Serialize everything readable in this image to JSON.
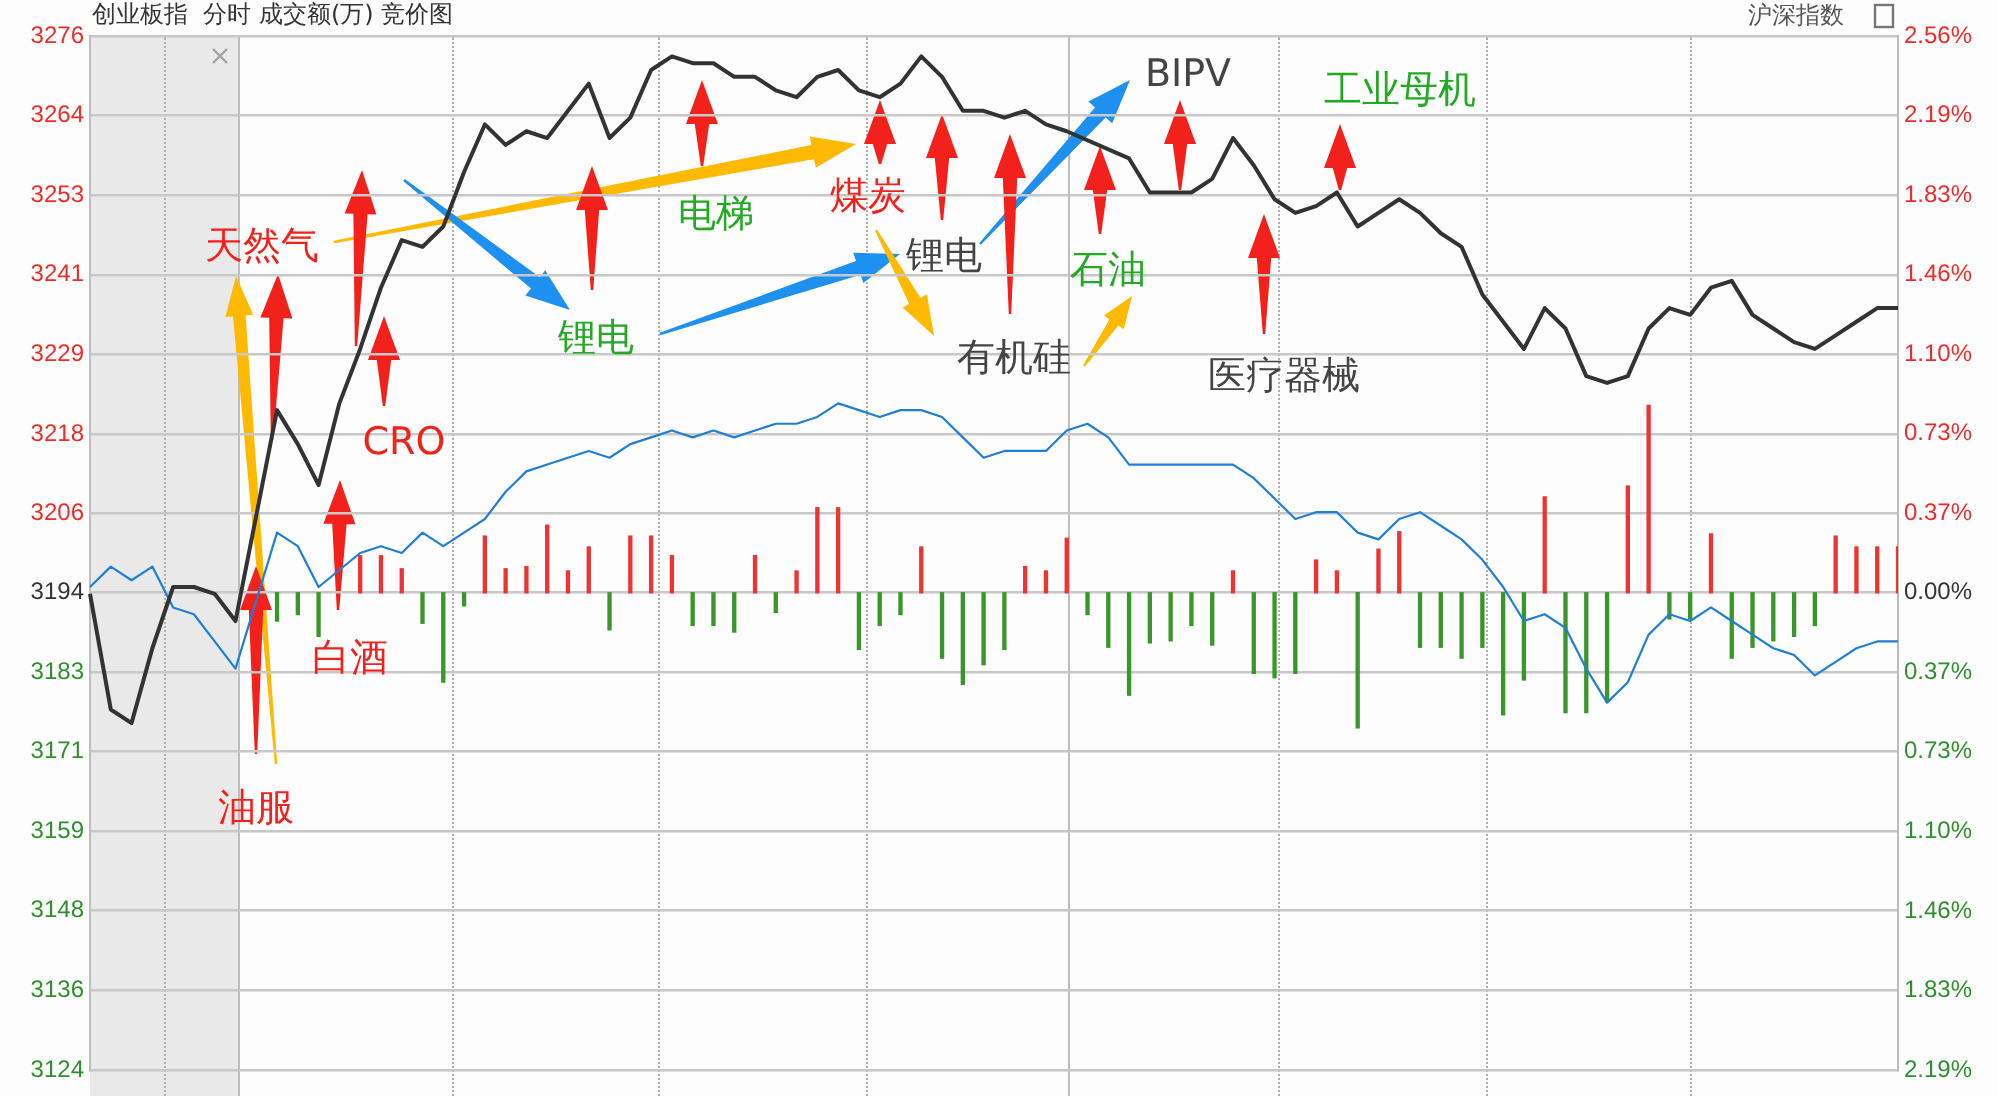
{
  "chart_data": {
    "type": "line",
    "title": "创业板指  分时 成交额(万) 竞价图",
    "categories": [
      null,
      null,
      null,
      null,
      null,
      null,
      null,
      null,
      null,
      null,
      null,
      null,
      null,
      null,
      null,
      null,
      null,
      null,
      null,
      null,
      null,
      null,
      null,
      null,
      null,
      null,
      null,
      null,
      null,
      null,
      null,
      null,
      null,
      null,
      null,
      null,
      null,
      null,
      null,
      null,
      null,
      null,
      null,
      null,
      null,
      null,
      null,
      null,
      null,
      null,
      null,
      null,
      null,
      null,
      null,
      null,
      null,
      null,
      null,
      null,
      null,
      null,
      null,
      null,
      null,
      null,
      null,
      null,
      null,
      null,
      null,
      null,
      null,
      null,
      null,
      null,
      null,
      null,
      null,
      null,
      null,
      null,
      null,
      null,
      null,
      null,
      null,
      null
    ],
    "series": [
      {
        "color": "#333333",
        "values": [
          3194,
          3177,
          3175,
          3186,
          3195,
          3195,
          3194,
          3190,
          null,
          3221,
          3216,
          3210,
          3222,
          3230,
          3239,
          3246,
          3245,
          3248,
          3256,
          3263,
          3260,
          3262,
          3261,
          3265,
          3269,
          3261,
          3264,
          3271,
          3273,
          3272,
          3272,
          3270,
          3270,
          3268,
          3267,
          3270,
          3271,
          3268,
          3267,
          3269,
          3273,
          3270,
          3265,
          3265,
          3264,
          3265,
          3263,
          3262,
          null,
          null,
          3258,
          3253,
          3253,
          3253,
          3255,
          3261,
          3257,
          3252,
          3250,
          3251,
          3253,
          3248,
          3250,
          3252,
          3250,
          3247,
          3245,
          3238,
          3234,
          3230,
          3236,
          3233,
          3226,
          3225,
          3226,
          3233,
          3236,
          3235,
          3239,
          3240,
          3235,
          3233,
          3231,
          3230,
          3232,
          3234,
          3236,
          3236
        ]
      },
      {
        "color": "#1f7fd6",
        "values": [
          3195,
          3198,
          3196,
          3198,
          3192,
          3191,
          3187,
          3183,
          null,
          3203,
          3201,
          3195,
          null,
          3200,
          3201,
          3200,
          3203,
          3201,
          3203,
          3205,
          3209,
          3212,
          3213,
          3214,
          3215,
          3214,
          3216,
          3217,
          3218,
          3217,
          3218,
          3217,
          3218,
          3219,
          3219,
          3220,
          3222,
          3221,
          3220,
          3221,
          3221,
          3220,
          3217,
          3214,
          3215,
          3215,
          3215,
          3218,
          3219,
          3217,
          3213,
          3213,
          3213,
          3213,
          3213,
          3213,
          3211,
          3208,
          3205,
          3206,
          3206,
          3203,
          3202,
          3205,
          3206,
          3204,
          3202,
          3199,
          3195,
          3190,
          3191,
          3189,
          3183,
          3178,
          3181,
          3188,
          3191,
          3190,
          3192,
          3190,
          3188,
          3186,
          3185,
          3182,
          3184,
          3186,
          3187,
          3187
        ]
      },
      {
        "type": "bar",
        "axis": "y2",
        "color": "#ee3333",
        "values": [
          null,
          null,
          null,
          null,
          null,
          null,
          null,
          null,
          null,
          null,
          null,
          null,
          null,
          0.17,
          0.17,
          0.11,
          null,
          null,
          null,
          0.26,
          0.11,
          0.12,
          0.31,
          0.1,
          0.21,
          null,
          0.26,
          0.26,
          0.17,
          null,
          null,
          null,
          0.17,
          null,
          0.1,
          0.39,
          0.39,
          null,
          null,
          null,
          0.21,
          null,
          null,
          null,
          null,
          0.12,
          0.1,
          0.25,
          null,
          null,
          null,
          null,
          null,
          null,
          null,
          0.1,
          null,
          null,
          null,
          0.15,
          0.1,
          null,
          0.2,
          0.28,
          null,
          null,
          null,
          null,
          null,
          null,
          0.44,
          null,
          null,
          null,
          0.49,
          0.86,
          null,
          null,
          0.27,
          null,
          null,
          null,
          null,
          null,
          0.26,
          0.21,
          0.21,
          0.21
        ]
      },
      {
        "type": "bar",
        "axis": "y2",
        "color": "#3a962a",
        "values": [
          null,
          null,
          null,
          null,
          null,
          null,
          null,
          null,
          null,
          -0.13,
          -0.1,
          -0.2,
          null,
          null,
          null,
          null,
          -0.14,
          -0.41,
          -0.06,
          null,
          null,
          null,
          null,
          null,
          null,
          -0.17,
          null,
          null,
          null,
          -0.15,
          -0.15,
          -0.18,
          null,
          -0.09,
          null,
          null,
          null,
          -0.26,
          -0.15,
          -0.1,
          null,
          -0.3,
          -0.42,
          -0.33,
          -0.26,
          null,
          null,
          null,
          -0.1,
          -0.25,
          -0.47,
          -0.23,
          -0.22,
          -0.15,
          -0.24,
          null,
          -0.37,
          -0.39,
          -0.37,
          null,
          null,
          -0.62,
          null,
          null,
          -0.25,
          -0.25,
          -0.3,
          -0.25,
          -0.56,
          -0.4,
          null,
          -0.55,
          -0.55,
          -0.5,
          null,
          null,
          -0.12,
          -0.12,
          null,
          -0.3,
          -0.25,
          -0.22,
          -0.2,
          -0.15,
          null,
          null,
          null,
          null
        ]
      }
    ],
    "ylim": [
      3124,
      3276
    ],
    "yticks": [
      3124,
      {
        "value": 3135.7,
        "label": "3136"
      },
      {
        "value": 3147.5,
        "label": "3148"
      },
      {
        "value": 3159.1,
        "label": "3159"
      },
      {
        "value": 3170.8,
        "label": "3171"
      },
      {
        "value": 3182.5,
        "label": "3183"
      },
      {
        "value": 3194.2,
        "label": "3194"
      },
      {
        "value": 3205.8,
        "label": "3206"
      },
      {
        "value": 3217.5,
        "label": "3218"
      },
      {
        "value": 3229.2,
        "label": "3229"
      },
      {
        "value": 3240.9,
        "label": "3241"
      },
      {
        "value": 3252.6,
        "label": "3253"
      },
      {
        "value": 3264.3,
        "label": "3264"
      },
      3276
    ],
    "y2lim": [
      -2.19,
      2.555
    ],
    "y2ticks": [
      {
        "value": -2.19,
        "label": "2.19%"
      },
      {
        "value": -1.825,
        "label": "1.83%"
      },
      {
        "value": -1.46,
        "label": "1.46%"
      },
      {
        "value": -1.095,
        "label": "1.10%"
      },
      {
        "value": -0.73,
        "label": "0.73%"
      },
      {
        "value": -0.365,
        "label": "0.37%"
      },
      {
        "value": 0,
        "label": "0.00%"
      },
      {
        "value": 0.365,
        "label": "0.37%"
      },
      {
        "value": 0.73,
        "label": "0.73%"
      },
      {
        "value": 1.095,
        "label": "1.10%"
      },
      {
        "value": 1.46,
        "label": "1.46%"
      },
      {
        "value": 1.825,
        "label": "1.83%"
      },
      {
        "value": 2.19,
        "label": "2.19%"
      },
      {
        "value": 2.555,
        "label": "2.56%"
      }
    ],
    "grid": "y",
    "marker": "none",
    "annotations": [
      "天然气",
      "CRO",
      "白酒",
      "油服",
      "锂电",
      "电梯",
      "煤炭",
      "锂电",
      "有机硅",
      "石油",
      "BIPV",
      "工业母机",
      "医疗器械",
      "沪深指数"
    ]
  }
}
